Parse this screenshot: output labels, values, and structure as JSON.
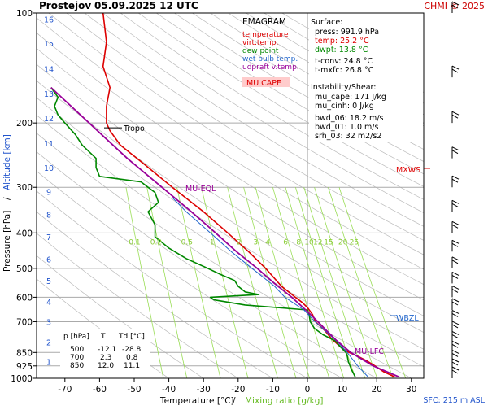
{
  "header": {
    "station": "Prostejov",
    "datetime": "05.09.2025 12 UTC",
    "copyright": "CHMI © 2025"
  },
  "legend": {
    "title": "EMAGRAM",
    "items": [
      {
        "label": "temperature",
        "color": "#dd0000"
      },
      {
        "label": "virt.temp.",
        "color": "#dd0000"
      },
      {
        "label": "dew point",
        "color": "#008800"
      },
      {
        "label": "wet bulb temp.",
        "color": "#2266cc"
      },
      {
        "label": "udpraft v.temp.",
        "color": "#990099"
      }
    ],
    "mu_cape_label": "MU CAPE",
    "mu_cape_color": "#ffcccc"
  },
  "surface": {
    "title": "Surface:",
    "press": "press: 991.9 hPa",
    "temp": "temp: 25.2 °C",
    "dwpt": "dwpt: 13.8 °C",
    "tconv": "t-conv: 24.8 °C",
    "tmxfc": "t-mxfc: 26.8 °C"
  },
  "instability": {
    "title": "Instability/Shear:",
    "mu_cape": "mu_cape: 171 J/kg",
    "mu_cinh": "mu_cinh: 0 J/kg",
    "bwd_06": "bwd_06: 18.2 m/s",
    "bwd_01": "bwd_01: 1.0 m/s",
    "srh_03": "srh_03: 32 m2/s2"
  },
  "levels_table": {
    "headers": [
      "p [hPa]",
      "T",
      "Td [°C]"
    ],
    "rows": [
      [
        "500",
        "-12.1",
        "-28.8"
      ],
      [
        "700",
        "2.3",
        "0.8"
      ],
      [
        "850",
        "12.0",
        "11.1"
      ]
    ]
  },
  "annotations": {
    "tropo": "Tropo",
    "mu_eql": "MU-EQL",
    "mu_lfc": "MU-LFC",
    "mxws": "MXWS",
    "wbzl": "WBZL",
    "sfc": "SFC: 215 m ASL"
  },
  "axes": {
    "xlabel_main": "Temperature [°C]",
    "xlabel_sep": "/",
    "xlabel_mix": "Mixing ratio [g/kg]",
    "ylabel_main": "Pressure [hPa]",
    "ylabel_sep": "/",
    "ylabel_alt": "Altitude [km]"
  },
  "colors": {
    "temperature": "#dd0000",
    "dewpoint": "#008800",
    "wetbulb": "#2266cc",
    "parcel": "#990099",
    "mixing_lines": "#99dd55",
    "mixing_labels": "#88cc33",
    "altitude": "#2255cc",
    "dry_adiabat": "#bbbbbb",
    "header_red": "#cc0000",
    "sfc_blue": "#2255cc"
  },
  "chart_data": {
    "type": "line",
    "title": "Prostejov 05.09.2025 12 UTC",
    "xlabel": "Temperature [°C] / Mixing ratio [g/kg]",
    "ylabel": "Pressure [hPa] / Altitude [km]",
    "y_scale": "log",
    "y_reversed": true,
    "xlim": [
      -80,
      35
    ],
    "ylim": [
      1000,
      100
    ],
    "x_ticks": [
      -70,
      -60,
      -50,
      -40,
      -30,
      -20,
      -10,
      0,
      10,
      20,
      30
    ],
    "x_tick_labels": [
      "-70",
      "-60",
      "-50",
      "-40",
      "-30",
      "-20",
      "-10",
      "0",
      "10",
      "20",
      "30"
    ],
    "p_ticks": [
      1000,
      925,
      850,
      700,
      600,
      500,
      400,
      300,
      200,
      100
    ],
    "p_tick_labels": [
      "1000",
      "925",
      "850",
      "700",
      "600",
      "500",
      "400",
      "300",
      "200",
      "100"
    ],
    "altitude_km": [
      {
        "km": 1,
        "p": 900
      },
      {
        "km": 2,
        "p": 795
      },
      {
        "km": 3,
        "p": 701
      },
      {
        "km": 4,
        "p": 617
      },
      {
        "km": 5,
        "p": 541
      },
      {
        "km": 6,
        "p": 472
      },
      {
        "km": 7,
        "p": 410
      },
      {
        "km": 8,
        "p": 356
      },
      {
        "km": 9,
        "p": 308
      },
      {
        "km": 10,
        "p": 265
      },
      {
        "km": 11,
        "p": 227
      },
      {
        "km": 12,
        "p": 194
      },
      {
        "km": 13,
        "p": 166
      },
      {
        "km": 14,
        "p": 142
      },
      {
        "km": 15,
        "p": 121
      },
      {
        "km": 16,
        "p": 104
      }
    ],
    "mixing_ratio_labels": [
      "0.1",
      "0.2",
      "0.5",
      "1",
      "2",
      "3",
      "4",
      "6",
      "8",
      "10",
      "12",
      "15",
      "20",
      "25"
    ],
    "mixing_ratio_values": [
      0.1,
      0.2,
      0.5,
      1,
      2,
      3,
      4,
      6,
      8,
      10,
      12,
      15,
      20,
      25
    ],
    "series": [
      {
        "name": "temperature",
        "p": [
          992,
          960,
          925,
          900,
          870,
          850,
          820,
          780,
          740,
          700,
          670,
          640,
          620,
          600,
          560,
          500,
          450,
          400,
          350,
          300,
          260,
          230,
          210,
          200,
          180,
          160,
          140,
          120,
          100
        ],
        "t": [
          25.2,
          22,
          19.5,
          17.5,
          14.5,
          12.0,
          9.5,
          7.0,
          5.0,
          2.3,
          1.5,
          0,
          -1.5,
          -3.5,
          -7.5,
          -12.1,
          -17,
          -23,
          -30,
          -39,
          -47,
          -54,
          -57,
          -58,
          -58,
          -57,
          -59,
          -58,
          -59
        ]
      },
      {
        "name": "dew point",
        "p": [
          992,
          950,
          925,
          900,
          870,
          850,
          820,
          790,
          760,
          730,
          700,
          670,
          650,
          630,
          610,
          600,
          590,
          580,
          560,
          540,
          520,
          500,
          470,
          440,
          410,
          380,
          350,
          330,
          310,
          300,
          290,
          280,
          265,
          250,
          230,
          215,
          200,
          190,
          180,
          170,
          160
        ],
        "t": [
          13.8,
          12.8,
          12.3,
          11.8,
          11.5,
          11.1,
          9.5,
          8.0,
          4.5,
          2.0,
          0.8,
          0.5,
          0,
          -18,
          -27,
          -28,
          -14,
          -18,
          -20,
          -21,
          -25,
          -28.8,
          -35,
          -40,
          -44,
          -44,
          -46,
          -43,
          -44,
          -46,
          -48,
          -60,
          -61,
          -61,
          -65,
          -67,
          -70,
          -72,
          -73,
          -72,
          -74
        ]
      },
      {
        "name": "wet bulb temp.",
        "p": [
          992,
          925,
          850,
          800,
          700,
          650,
          600,
          560,
          500,
          450,
          400,
          350,
          320
        ],
        "t": [
          17.5,
          14.5,
          11.5,
          9.0,
          2.2,
          -1.0,
          -6.5,
          -9.5,
          -16,
          -22,
          -28,
          -35,
          -39
        ]
      },
      {
        "name": "udpraft v.temp.",
        "p": [
          992,
          925,
          850,
          790,
          740,
          700,
          650,
          600,
          550,
          500,
          450,
          400,
          350,
          300,
          250,
          200,
          170,
          160
        ],
        "t": [
          26.5,
          19.0,
          12.5,
          8.5,
          5.5,
          3.0,
          -0.5,
          -4.5,
          -9.5,
          -14.5,
          -20.5,
          -26.5,
          -33.5,
          -42,
          -52,
          -63,
          -71,
          -74
        ]
      }
    ],
    "tropopause_p": 200,
    "wind_barbs_p": [
      100,
      150,
      200,
      250,
      300,
      350,
      400,
      450,
      500,
      550,
      600,
      650,
      700,
      750,
      800,
      850,
      900,
      950,
      1000
    ]
  }
}
